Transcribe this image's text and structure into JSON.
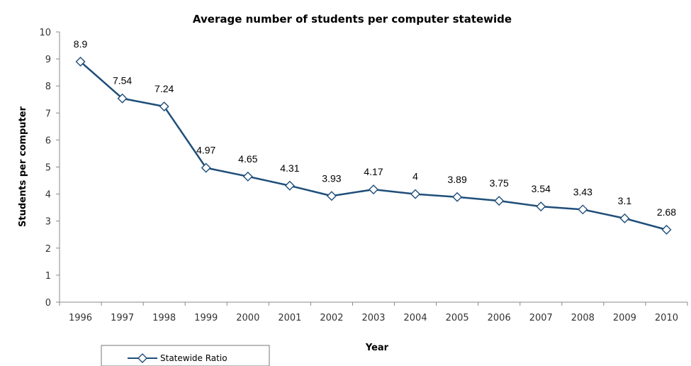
{
  "chart_data": {
    "type": "line",
    "title": "Average number of students per computer statewide",
    "xlabel": "Year",
    "ylabel": "Students per computer",
    "ylim": [
      0,
      10
    ],
    "yticks": [
      0,
      1,
      2,
      3,
      4,
      5,
      6,
      7,
      8,
      9,
      10
    ],
    "categories": [
      "1996",
      "1997",
      "1998",
      "1999",
      "2000",
      "2001",
      "2002",
      "2003",
      "2004",
      "2005",
      "2006",
      "2007",
      "2008",
      "2009",
      "2010"
    ],
    "series": [
      {
        "name": "Statewide Ratio",
        "values": [
          8.9,
          7.54,
          7.24,
          4.97,
          4.65,
          4.31,
          3.93,
          4.17,
          4,
          3.89,
          3.75,
          3.54,
          3.43,
          3.1,
          2.68
        ],
        "color": "#1f4e79",
        "marker": "diamond"
      }
    ],
    "data_labels": [
      "8.9",
      "7.54",
      "7.24",
      "4.97",
      "4.65",
      "4.31",
      "3.93",
      "4.17",
      "4",
      "3.89",
      "3.75",
      "3.54",
      "3.43",
      "3.1",
      "2.68"
    ],
    "legend": {
      "position": "bottom-left"
    },
    "grid": false
  }
}
